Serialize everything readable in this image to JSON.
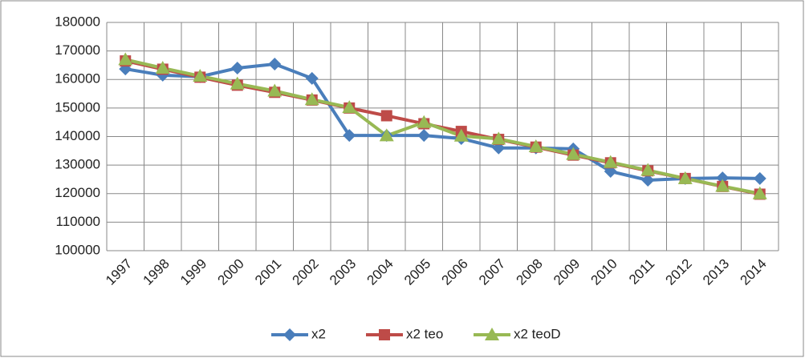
{
  "chart_data": {
    "type": "line",
    "categories": [
      "1997",
      "1998",
      "1999",
      "2000",
      "2001",
      "2002",
      "2003",
      "2004",
      "2005",
      "2006",
      "2007",
      "2008",
      "2009",
      "2010",
      "2011",
      "2012",
      "2013",
      "2014"
    ],
    "series": [
      {
        "name": "x2",
        "color": "#4a7ebb",
        "marker": "diamond",
        "values": [
          163700,
          161500,
          161000,
          164000,
          165400,
          160400,
          140400,
          140400,
          140400,
          139300,
          136000,
          136000,
          135700,
          127800,
          124700,
          125300,
          125500,
          125300
        ]
      },
      {
        "name": "x2 teo",
        "color": "#be4b48",
        "marker": "square",
        "values": [
          166500,
          163600,
          160800,
          158000,
          155500,
          152800,
          150000,
          147300,
          144500,
          141800,
          139000,
          136300,
          133500,
          130800,
          128000,
          125300,
          122500,
          119800
        ]
      },
      {
        "name": "x2 teoD",
        "color": "#98b954",
        "marker": "triangle",
        "values": [
          167000,
          164000,
          161200,
          158500,
          156000,
          153000,
          150200,
          140300,
          145000,
          140200,
          139200,
          136500,
          133800,
          131000,
          128200,
          125300,
          122600,
          120000
        ]
      }
    ],
    "ylim": [
      100000,
      180000
    ],
    "yticks": [
      100000,
      110000,
      120000,
      130000,
      140000,
      150000,
      160000,
      170000,
      180000
    ],
    "grid": true,
    "legend": "bottom"
  }
}
